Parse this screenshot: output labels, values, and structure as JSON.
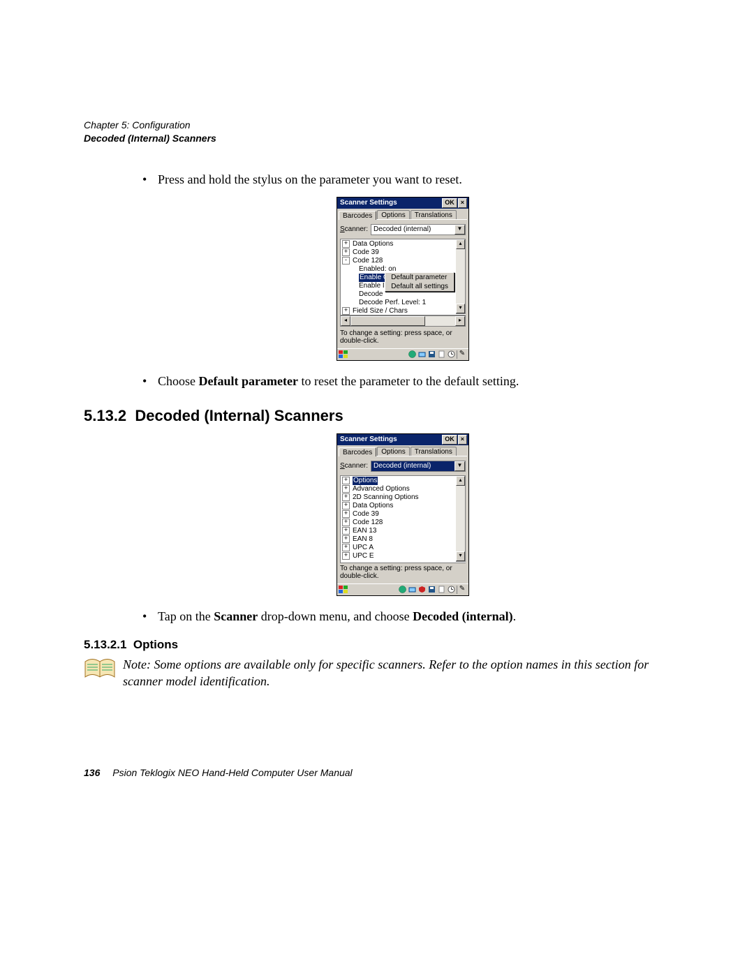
{
  "header": {
    "chapter": "Chapter 5: Configuration",
    "section": "Decoded (Internal) Scanners"
  },
  "bullets": {
    "b1": "Press and hold the stylus on the parameter you want to reset.",
    "b2_pre": "Choose ",
    "b2_bold": "Default parameter",
    "b2_post": " to reset the parameter to the default setting.",
    "b3_pre": "Tap on the ",
    "b3_bold1": "Scanner",
    "b3_mid": " drop-down menu, and choose ",
    "b3_bold2": "Decoded (internal)",
    "b3_post": "."
  },
  "h2": {
    "num": "5.13.2",
    "title": "Decoded (Internal) Scanners"
  },
  "h3": {
    "num": "5.13.2.1",
    "title": "Options"
  },
  "note": "Note: Some options are available only for specific scanners. Refer to the option names in this section for scanner model identification.",
  "footer": {
    "page": "136",
    "manual": "Psion Teklogix NEO Hand-Held Computer User Manual"
  },
  "colors": {
    "titlebar": "#0a246a",
    "highlight_bg": "#0a246a",
    "win_bg": "#d4d0c8",
    "text": "#000000"
  },
  "shot1": {
    "title": "Scanner Settings",
    "ok": "OK",
    "close": "×",
    "tabs": [
      "Barcodes",
      "Options",
      "Translations"
    ],
    "active_tab": 0,
    "scanner_label": "Scanner:",
    "scanner_value": "Decoded (internal)",
    "tree": [
      {
        "lvl": 0,
        "pm": "+",
        "label": "Data Options"
      },
      {
        "lvl": 0,
        "pm": "+",
        "label": "Code 39"
      },
      {
        "lvl": 0,
        "pm": "-",
        "label": "Code 128"
      },
      {
        "lvl": 1,
        "pm": "",
        "label": "Enabled: on"
      },
      {
        "lvl": 1,
        "pm": "",
        "label": "Enable GS1-128/GS1 US: on",
        "hl": true
      },
      {
        "lvl": 1,
        "pm": "",
        "label": "Enable I"
      },
      {
        "lvl": 1,
        "pm": "",
        "label": "Decode"
      },
      {
        "lvl": 1,
        "pm": "",
        "label": "Decode Perf. Level: 1"
      },
      {
        "lvl": 0,
        "pm": "+",
        "label": "Field Size / Chars"
      }
    ],
    "context_menu": [
      "Default parameter",
      "Default all settings"
    ],
    "help": "To change a setting: press space, or double-click.",
    "hscroll_thumb_pct": 70
  },
  "shot2": {
    "title": "Scanner Settings",
    "ok": "OK",
    "close": "×",
    "tabs": [
      "Barcodes",
      "Options",
      "Translations"
    ],
    "active_tab": 0,
    "scanner_label": "Scanner:",
    "scanner_value": "Decoded (internal)",
    "scanner_selected": true,
    "tree": [
      {
        "lvl": 0,
        "pm": "+",
        "label": "Options",
        "hl": true
      },
      {
        "lvl": 0,
        "pm": "+",
        "label": "Advanced Options"
      },
      {
        "lvl": 0,
        "pm": "+",
        "label": "2D Scanning Options"
      },
      {
        "lvl": 0,
        "pm": "+",
        "label": "Data Options"
      },
      {
        "lvl": 0,
        "pm": "+",
        "label": "Code 39"
      },
      {
        "lvl": 0,
        "pm": "+",
        "label": "Code 128"
      },
      {
        "lvl": 0,
        "pm": "+",
        "label": "EAN 13"
      },
      {
        "lvl": 0,
        "pm": "+",
        "label": "EAN 8"
      },
      {
        "lvl": 0,
        "pm": "+",
        "label": "UPC A"
      },
      {
        "lvl": 0,
        "pm": "+",
        "label": "UPC E"
      }
    ],
    "help": "To change a setting: press space, or double-click."
  }
}
